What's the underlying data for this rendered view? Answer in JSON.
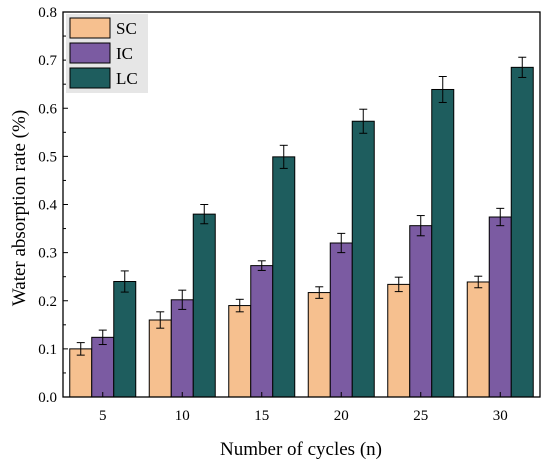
{
  "chart_data": {
    "type": "bar",
    "xlabel": "Number of cycles (n)",
    "ylabel": "Water absorption rate (%)",
    "ylim": [
      0,
      0.8
    ],
    "yticks": [
      "0.0",
      "0.1",
      "0.2",
      "0.3",
      "0.4",
      "0.5",
      "0.6",
      "0.7",
      "0.8"
    ],
    "categories": [
      "5",
      "10",
      "15",
      "20",
      "25",
      "30"
    ],
    "series": [
      {
        "name": "SC",
        "color": "#F6C08F",
        "values": [
          0.1,
          0.16,
          0.19,
          0.217,
          0.234,
          0.239
        ],
        "errors": [
          0.013,
          0.017,
          0.013,
          0.012,
          0.015,
          0.012
        ]
      },
      {
        "name": "IC",
        "color": "#7B5BA2",
        "values": [
          0.124,
          0.202,
          0.273,
          0.32,
          0.356,
          0.374
        ],
        "errors": [
          0.015,
          0.02,
          0.01,
          0.02,
          0.021,
          0.018
        ]
      },
      {
        "name": "LC",
        "color": "#1E5D5E",
        "values": [
          0.24,
          0.38,
          0.499,
          0.573,
          0.639,
          0.685
        ],
        "errors": [
          0.022,
          0.02,
          0.024,
          0.025,
          0.027,
          0.021
        ]
      }
    ],
    "legend_position": "top-left",
    "grid": false
  }
}
